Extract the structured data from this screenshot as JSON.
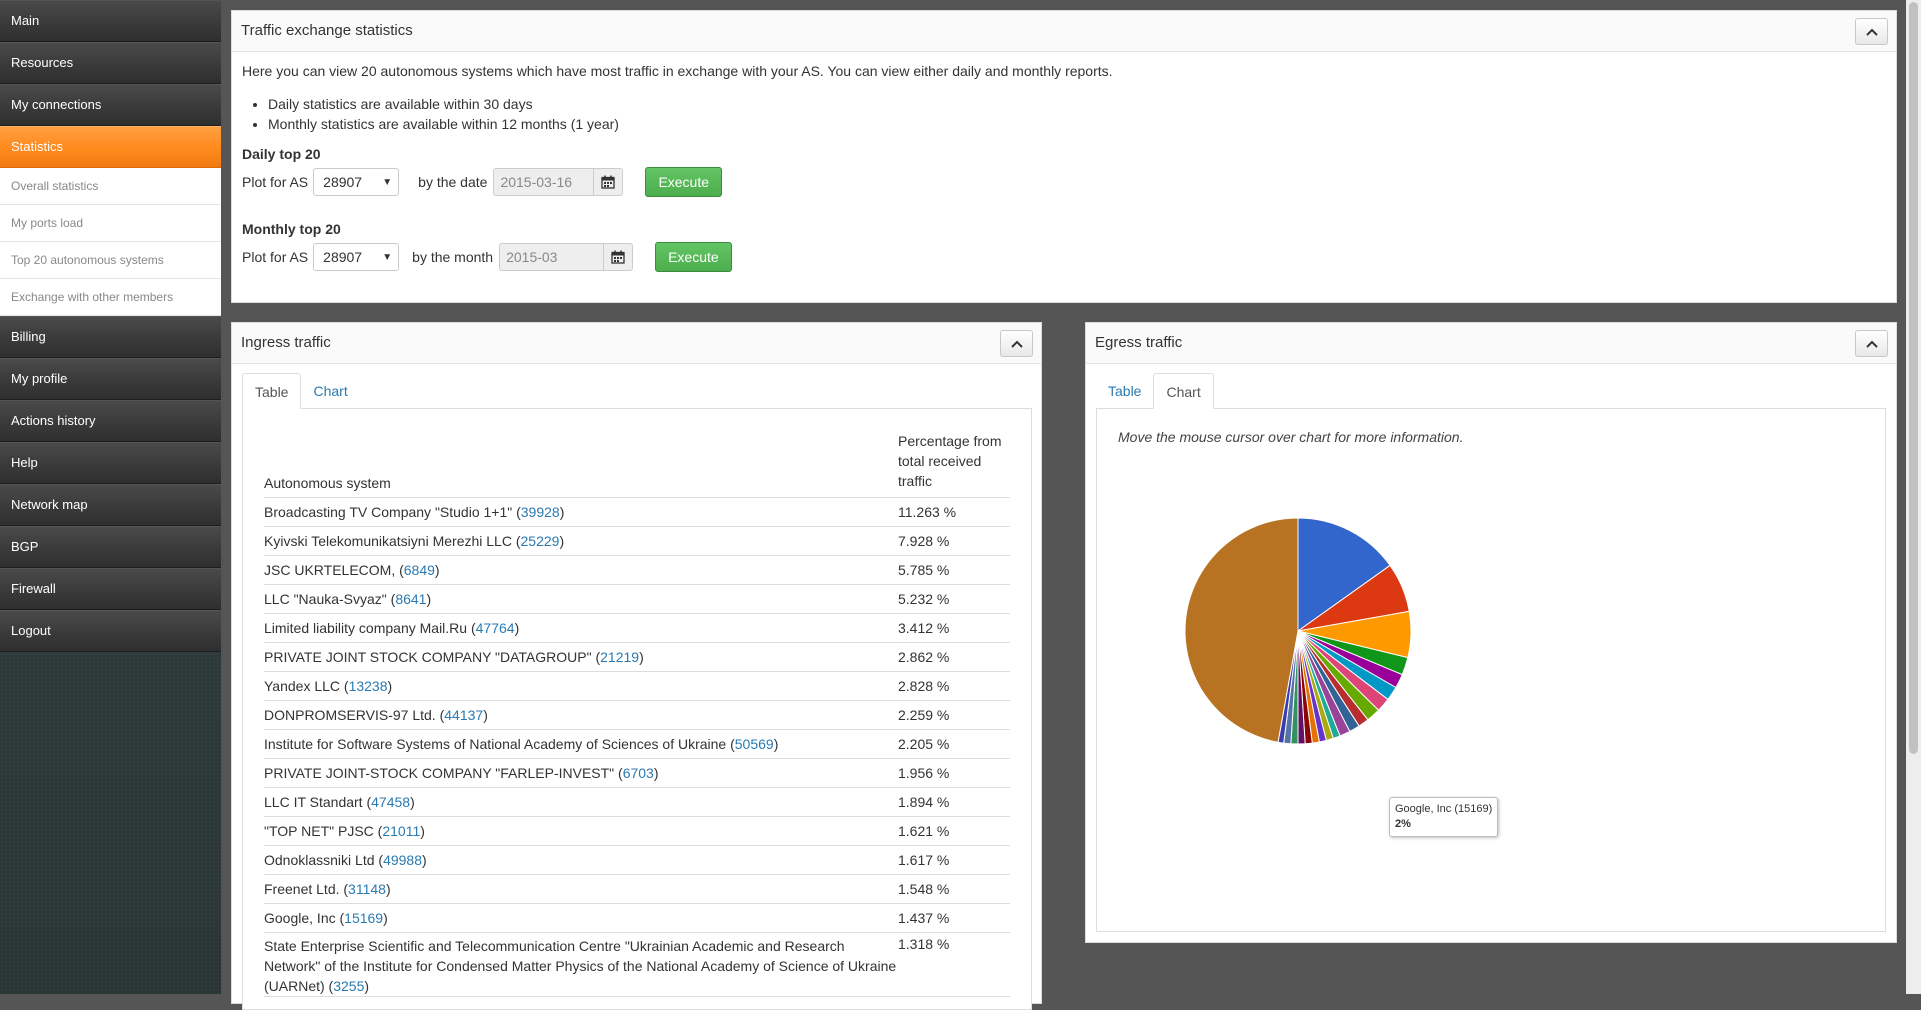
{
  "sidebar": {
    "items": [
      {
        "label": "Main"
      },
      {
        "label": "Resources"
      },
      {
        "label": "My connections"
      },
      {
        "label": "Statistics"
      },
      {
        "label": "Billing"
      },
      {
        "label": "My profile"
      },
      {
        "label": "Actions history"
      },
      {
        "label": "Help"
      },
      {
        "label": "Network map"
      },
      {
        "label": "BGP"
      },
      {
        "label": "Firewall"
      },
      {
        "label": "Logout"
      }
    ],
    "active_index": 3,
    "submenu": [
      {
        "label": "Overall statistics"
      },
      {
        "label": "My ports load"
      },
      {
        "label": "Top 20 autonomous systems"
      },
      {
        "label": "Exchange with other members"
      }
    ]
  },
  "traffic_panel": {
    "title": "Traffic exchange statistics",
    "intro": "Here you can view 20 autonomous systems which have most traffic in exchange with your AS. You can view either daily and monthly reports.",
    "bullets": [
      "Daily statistics are available within 30 days",
      "Monthly statistics are available within 12 months (1 year)"
    ],
    "daily": {
      "title": "Daily top 20",
      "plot_label": "Plot for AS",
      "as_value": "28907",
      "date_label": "by the date",
      "date_value": "2015-03-16",
      "execute": "Execute"
    },
    "monthly": {
      "title": "Monthly top 20",
      "plot_label": "Plot for AS",
      "as_value": "28907",
      "month_label": "by the month",
      "month_value": "2015-03",
      "execute": "Execute"
    }
  },
  "ingress": {
    "title": "Ingress traffic",
    "tabs": [
      "Table",
      "Chart"
    ],
    "active_tab": "Table",
    "columns": [
      "Autonomous system",
      "Percentage from total received traffic"
    ],
    "rows": [
      {
        "name": "Broadcasting TV Company \"Studio 1+1\" (",
        "asn": "39928",
        "suffix": ")",
        "pct": "11.263 %"
      },
      {
        "name": "Kyivski Telekomunikatsiyni Merezhi LLC (",
        "asn": "25229",
        "suffix": ")",
        "pct": "7.928 %"
      },
      {
        "name": "JSC UKRTELECOM, (",
        "asn": "6849",
        "suffix": ")",
        "pct": "5.785 %"
      },
      {
        "name": "LLC \"Nauka-Svyaz\" (",
        "asn": "8641",
        "suffix": ")",
        "pct": "5.232 %"
      },
      {
        "name": "Limited liability company Mail.Ru (",
        "asn": "47764",
        "suffix": ")",
        "pct": "3.412 %"
      },
      {
        "name": "PRIVATE JOINT STOCK COMPANY \"DATAGROUP\" (",
        "asn": "21219",
        "suffix": ")",
        "pct": "2.862 %"
      },
      {
        "name": "Yandex LLC (",
        "asn": "13238",
        "suffix": ")",
        "pct": "2.828 %"
      },
      {
        "name": "DONPROMSERVIS-97 Ltd. (",
        "asn": "44137",
        "suffix": ")",
        "pct": "2.259 %"
      },
      {
        "name": "Institute for Software Systems of National Academy of Sciences of Ukraine (",
        "asn": "50569",
        "suffix": ")",
        "pct": "2.205 %"
      },
      {
        "name": "PRIVATE JOINT-STOCK COMPANY \"FARLEP-INVEST\" (",
        "asn": "6703",
        "suffix": ")",
        "pct": "1.956 %"
      },
      {
        "name": "LLC IT Standart (",
        "asn": "47458",
        "suffix": ")",
        "pct": "1.894 %"
      },
      {
        "name": "\"TOP NET\" PJSC (",
        "asn": "21011",
        "suffix": ")",
        "pct": "1.621 %"
      },
      {
        "name": "Odnoklassniki Ltd (",
        "asn": "49988",
        "suffix": ")",
        "pct": "1.617 %"
      },
      {
        "name": "Freenet Ltd. (",
        "asn": "31148",
        "suffix": ")",
        "pct": "1.548 %"
      },
      {
        "name": "Google, Inc (",
        "asn": "15169",
        "suffix": ")",
        "pct": "1.437 %"
      },
      {
        "name": "State Enterprise Scientific and Telecommunication Centre \"Ukrainian Academic and Research Network\" of the Institute for Condensed Matter Physics of the National Academy of Science of Ukraine (UARNet) (",
        "asn": "3255",
        "suffix": ")",
        "pct": "1.318 %"
      }
    ]
  },
  "egress": {
    "title": "Egress traffic",
    "tabs": [
      "Table",
      "Chart"
    ],
    "active_tab": "Chart",
    "hint": "Move the mouse cursor over chart for more information.",
    "tooltip": {
      "name": "Google, Inc (15169)",
      "value": "2%"
    }
  },
  "chart_data": {
    "type": "pie",
    "title": "",
    "values": [
      15.0,
      7.0,
      6.5,
      2.5,
      2.0,
      2.0,
      2.0,
      2.0,
      1.5,
      1.5,
      1.5,
      1.0,
      1.0,
      1.0,
      1.0,
      1.0,
      1.0,
      1.0,
      1.0,
      0.8,
      46.7
    ],
    "colors": [
      "#3366cc",
      "#dc3912",
      "#ff9900",
      "#109618",
      "#990099",
      "#0099c6",
      "#dd4477",
      "#66aa00",
      "#b82e2e",
      "#316395",
      "#994499",
      "#22aa99",
      "#aaaa11",
      "#6633cc",
      "#e67300",
      "#8b0707",
      "#651067",
      "#329262",
      "#5574a6",
      "#3b3eac",
      "#b77322"
    ],
    "highlighted": {
      "label": "Google, Inc (15169)",
      "value": "2%"
    }
  }
}
